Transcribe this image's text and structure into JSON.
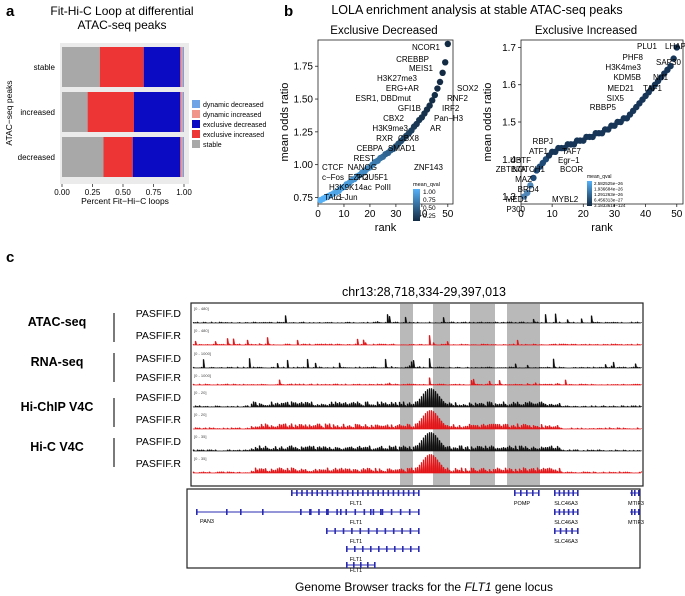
{
  "panels": {
    "a": {
      "letter": "a",
      "title_line1": "Fit-Hi-C Loop at differential",
      "title_line2": "ATAC-seq peaks"
    },
    "b": {
      "letter": "b",
      "title": "LOLA enrichment analysis at stable ATAC-seq peaks"
    },
    "c": {
      "letter": "c",
      "locus": "chr13:28,718,334-29,397,013",
      "caption_prefix": "Genome Browser tracks for the ",
      "caption_gene": "FLT1",
      "caption_suffix": " gene locus"
    }
  },
  "colors": {
    "dynamic_decreased": "#6fa4e6",
    "dynamic_increased": "#f1948a",
    "exclusive_decreased": "#0b0bc4",
    "exclusive_increased": "#ee3535",
    "stable": "#a8a8a8",
    "atac_black": "#111111",
    "track_red": "#e3161a",
    "gene_blue": "#2a2ab0",
    "highlight": "#b9b9b9"
  },
  "chart_data": [
    {
      "type": "bar",
      "orientation": "horizontal-stacked",
      "title": "Fit-Hi-C Loop at differential ATAC-seq peaks",
      "xlabel": "Percent Fit−Hi−C loops",
      "ylabel": "ATAC−seq peaks",
      "xlim": [
        0,
        1
      ],
      "xticks": [
        "0.00",
        "0.25",
        "0.50",
        "0.75",
        "1.00"
      ],
      "categories": [
        "stable",
        "increased",
        "decreased"
      ],
      "series": [
        {
          "name": "stable",
          "values": [
            0.31,
            0.21,
            0.34
          ]
        },
        {
          "name": "exclusive increased",
          "values": [
            0.36,
            0.38,
            0.24
          ]
        },
        {
          "name": "exclusive decreased",
          "values": [
            0.3,
            0.38,
            0.39
          ]
        },
        {
          "name": "dynamic increased",
          "values": [
            0.02,
            0.02,
            0.02
          ]
        },
        {
          "name": "dynamic decreased",
          "values": [
            0.01,
            0.01,
            0.01
          ]
        }
      ],
      "legend": [
        "dynamic decreased",
        "dynamic increased",
        "exclusive decreased",
        "exclusive increased",
        "stable"
      ]
    },
    {
      "type": "scatter",
      "title": "Exclusive Decreased",
      "xlabel": "rank",
      "ylabel": "mean odds ratio",
      "xlim": [
        0,
        52
      ],
      "ylim": [
        0.7,
        1.95
      ],
      "xticks": [
        0,
        10,
        20,
        30,
        40,
        50
      ],
      "yticks": [
        "0.75",
        "1.00",
        "1.25",
        "1.50",
        "1.75"
      ],
      "colorbar": {
        "title": "mean_qval",
        "ticks": [
          "1.00",
          "0.75",
          "0.50",
          "0.25"
        ]
      },
      "x": [
        1,
        2,
        3,
        4,
        5,
        6,
        7,
        8,
        9,
        10,
        11,
        12,
        13,
        14,
        15,
        16,
        17,
        18,
        19,
        20,
        21,
        22,
        23,
        24,
        25,
        26,
        27,
        28,
        29,
        30,
        31,
        32,
        33,
        34,
        35,
        36,
        37,
        38,
        39,
        40,
        41,
        42,
        43,
        44,
        45,
        46,
        47,
        48,
        49,
        50
      ],
      "y": [
        0.73,
        0.74,
        0.75,
        0.76,
        0.77,
        0.78,
        0.79,
        0.8,
        0.82,
        0.83,
        0.85,
        0.86,
        0.88,
        0.89,
        0.91,
        0.92,
        0.94,
        0.95,
        0.97,
        0.98,
        1.0,
        1.02,
        1.03,
        1.05,
        1.06,
        1.08,
        1.09,
        1.11,
        1.12,
        1.14,
        1.16,
        1.18,
        1.2,
        1.22,
        1.24,
        1.26,
        1.29,
        1.31,
        1.34,
        1.36,
        1.39,
        1.42,
        1.45,
        1.49,
        1.53,
        1.58,
        1.63,
        1.7,
        1.78,
        1.92
      ],
      "qval": [
        1.0,
        1.0,
        1.0,
        1.0,
        0.95,
        0.95,
        0.9,
        0.9,
        0.9,
        0.88,
        0.85,
        0.85,
        0.82,
        0.8,
        0.8,
        0.78,
        0.75,
        0.72,
        0.7,
        0.7,
        0.65,
        0.6,
        0.58,
        0.55,
        0.5,
        0.45,
        0.42,
        0.4,
        0.35,
        0.3,
        0.28,
        0.25,
        0.22,
        0.2,
        0.18,
        0.15,
        0.12,
        0.1,
        0.08,
        0.06,
        0.05,
        0.04,
        0.03,
        0.02,
        0.02,
        0.01,
        0.01,
        0.0,
        0.0,
        0.0
      ],
      "labels": [
        "NCOR1",
        "CREBBP",
        "MEIS1",
        "H3K27me3",
        "ERG+AR",
        "ESR1, DBDmut",
        "GFI1B",
        "IRF2",
        "CBX2",
        "H3K9me3",
        "RXR",
        "CBX8",
        "CEBPA",
        "SMAD1",
        "REST",
        "NANOG",
        "ZNF143",
        "POU5F1",
        "CTCF",
        "c−Fos",
        "EZH2",
        "H3K9K14ac",
        "PolII",
        "TAL1",
        "c−Jun",
        "SOX2",
        "RNF2",
        "Pan−H3",
        "AR"
      ]
    },
    {
      "type": "scatter",
      "title": "Exclusive Increased",
      "xlabel": "rank",
      "ylabel": "mean odds ratio",
      "xlim": [
        0,
        52
      ],
      "ylim": [
        1.28,
        1.72
      ],
      "xticks": [
        0,
        10,
        20,
        30,
        40,
        50
      ],
      "yticks": [
        "1.3",
        "1.4",
        "1.5",
        "1.6",
        "1.7"
      ],
      "colorbar": {
        "title": "mean_qval",
        "ticks": [
          "2.582525e−26",
          "1.936684e−26",
          "1.291263e−26",
          "6.456313e−27",
          "3.183361e−124"
        ]
      },
      "x": [
        1,
        2,
        3,
        4,
        5,
        6,
        7,
        8,
        9,
        10,
        11,
        12,
        13,
        14,
        15,
        16,
        17,
        18,
        19,
        20,
        21,
        22,
        23,
        24,
        25,
        26,
        27,
        28,
        29,
        30,
        31,
        32,
        33,
        34,
        35,
        36,
        37,
        38,
        39,
        40,
        41,
        42,
        43,
        44,
        45,
        46,
        47,
        48,
        49,
        50
      ],
      "y": [
        1.3,
        1.31,
        1.33,
        1.35,
        1.37,
        1.38,
        1.39,
        1.4,
        1.41,
        1.42,
        1.42,
        1.43,
        1.43,
        1.43,
        1.44,
        1.44,
        1.44,
        1.45,
        1.45,
        1.45,
        1.46,
        1.46,
        1.46,
        1.47,
        1.47,
        1.47,
        1.48,
        1.48,
        1.49,
        1.49,
        1.5,
        1.5,
        1.51,
        1.51,
        1.52,
        1.53,
        1.54,
        1.55,
        1.56,
        1.57,
        1.58,
        1.59,
        1.6,
        1.61,
        1.62,
        1.63,
        1.64,
        1.65,
        1.67,
        1.7
      ],
      "labels": [
        "PLU1",
        "LHAP",
        "PHF8",
        "SAP30",
        "H3K4me3",
        "KDM5B",
        "Nrf1",
        "MED21",
        "TAF1",
        "SIX5",
        "RBBP5",
        "RBPJ",
        "ATF1",
        "TAF7",
        "UBTF",
        "Egr−1",
        "ZBTB7A",
        "NOTCH1",
        "BCOR",
        "MAZ",
        "BRD4",
        "MED1",
        "MYBL2",
        "P300"
      ]
    }
  ],
  "browser": {
    "tracks": [
      {
        "assay": "ATAC-seq",
        "sample": "PASFIF.D",
        "range": "[0 - 480]"
      },
      {
        "assay": "",
        "sample": "PASFIF.R",
        "range": "[0 - 480]"
      },
      {
        "assay": "RNA-seq",
        "sample": "PASFIF.D",
        "range": "[0 - 1000]"
      },
      {
        "assay": "",
        "sample": "PASFIF.R",
        "range": "[0 - 1000]"
      },
      {
        "assay": "Hi-ChIP V4C",
        "sample": "PASFIF.D",
        "range": "[0 - 20]"
      },
      {
        "assay": "",
        "sample": "PASFIF.R",
        "range": "[0 - 20]"
      },
      {
        "assay": "Hi-C V4C",
        "sample": "PASFIF.D",
        "range": "[0 - 35]"
      },
      {
        "assay": "",
        "sample": "PASFIF.R",
        "range": "[0 - 35]"
      }
    ],
    "genes": [
      "PAN3",
      "FLT1",
      "FLT1",
      "FLT1",
      "FLT1",
      "FLT1",
      "POMP",
      "SLC46A3",
      "SLC46A3",
      "SLC46A3",
      "MTIF3",
      "MTIF3"
    ]
  }
}
